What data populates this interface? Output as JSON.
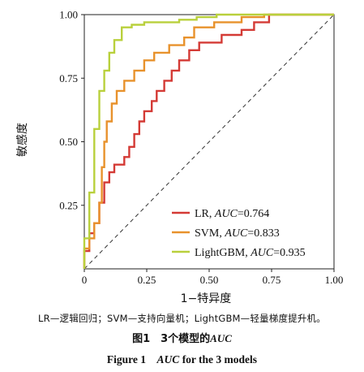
{
  "chart_data": {
    "type": "line",
    "xlabel": "1−特异度",
    "ylabel": "敏感度",
    "xlim": [
      0,
      1
    ],
    "ylim": [
      0,
      1
    ],
    "x_ticks": [
      "0",
      "0.25",
      "0.50",
      "0.75",
      "1.00"
    ],
    "y_ticks": [
      "0.25",
      "0.50",
      "0.75",
      "1.00"
    ],
    "grid": false,
    "legend_position": "bottom-right",
    "diagonal_reference": true,
    "series": [
      {
        "name": "LR",
        "auc_text": "AUC=0.764",
        "color": "#d43a35",
        "points": [
          [
            0,
            0
          ],
          [
            0,
            0.07
          ],
          [
            0.02,
            0.07
          ],
          [
            0.02,
            0.14
          ],
          [
            0.04,
            0.14
          ],
          [
            0.04,
            0.18
          ],
          [
            0.06,
            0.18
          ],
          [
            0.06,
            0.26
          ],
          [
            0.08,
            0.26
          ],
          [
            0.08,
            0.34
          ],
          [
            0.1,
            0.34
          ],
          [
            0.1,
            0.38
          ],
          [
            0.12,
            0.38
          ],
          [
            0.12,
            0.41
          ],
          [
            0.16,
            0.41
          ],
          [
            0.16,
            0.44
          ],
          [
            0.18,
            0.44
          ],
          [
            0.18,
            0.48
          ],
          [
            0.2,
            0.48
          ],
          [
            0.2,
            0.53
          ],
          [
            0.22,
            0.53
          ],
          [
            0.22,
            0.58
          ],
          [
            0.24,
            0.58
          ],
          [
            0.24,
            0.62
          ],
          [
            0.27,
            0.62
          ],
          [
            0.27,
            0.66
          ],
          [
            0.29,
            0.66
          ],
          [
            0.29,
            0.7
          ],
          [
            0.32,
            0.7
          ],
          [
            0.32,
            0.74
          ],
          [
            0.35,
            0.74
          ],
          [
            0.35,
            0.78
          ],
          [
            0.38,
            0.78
          ],
          [
            0.38,
            0.82
          ],
          [
            0.42,
            0.82
          ],
          [
            0.42,
            0.86
          ],
          [
            0.46,
            0.86
          ],
          [
            0.46,
            0.89
          ],
          [
            0.55,
            0.89
          ],
          [
            0.55,
            0.92
          ],
          [
            0.63,
            0.92
          ],
          [
            0.63,
            0.94
          ],
          [
            0.68,
            0.94
          ],
          [
            0.68,
            0.97
          ],
          [
            0.74,
            0.97
          ],
          [
            0.74,
            1.0
          ],
          [
            1.0,
            1.0
          ]
        ]
      },
      {
        "name": "SVM",
        "auc_text": "AUC=0.833",
        "color": "#e8922c",
        "points": [
          [
            0,
            0
          ],
          [
            0,
            0.08
          ],
          [
            0.02,
            0.08
          ],
          [
            0.02,
            0.12
          ],
          [
            0.04,
            0.12
          ],
          [
            0.04,
            0.18
          ],
          [
            0.06,
            0.18
          ],
          [
            0.06,
            0.26
          ],
          [
            0.07,
            0.26
          ],
          [
            0.07,
            0.4
          ],
          [
            0.08,
            0.4
          ],
          [
            0.08,
            0.5
          ],
          [
            0.09,
            0.5
          ],
          [
            0.09,
            0.58
          ],
          [
            0.11,
            0.58
          ],
          [
            0.11,
            0.65
          ],
          [
            0.13,
            0.65
          ],
          [
            0.13,
            0.7
          ],
          [
            0.16,
            0.7
          ],
          [
            0.16,
            0.74
          ],
          [
            0.2,
            0.74
          ],
          [
            0.2,
            0.78
          ],
          [
            0.24,
            0.78
          ],
          [
            0.24,
            0.82
          ],
          [
            0.28,
            0.82
          ],
          [
            0.28,
            0.85
          ],
          [
            0.34,
            0.85
          ],
          [
            0.34,
            0.88
          ],
          [
            0.4,
            0.88
          ],
          [
            0.4,
            0.91
          ],
          [
            0.44,
            0.91
          ],
          [
            0.44,
            0.95
          ],
          [
            0.52,
            0.95
          ],
          [
            0.52,
            0.97
          ],
          [
            0.63,
            0.97
          ],
          [
            0.63,
            0.99
          ],
          [
            0.72,
            0.99
          ],
          [
            0.72,
            1.0
          ],
          [
            1.0,
            1.0
          ]
        ]
      },
      {
        "name": "LightGBM",
        "auc_text": "AUC=0.935",
        "color": "#b9d03c",
        "points": [
          [
            0,
            0
          ],
          [
            0,
            0.12
          ],
          [
            0.02,
            0.12
          ],
          [
            0.02,
            0.3
          ],
          [
            0.04,
            0.3
          ],
          [
            0.04,
            0.55
          ],
          [
            0.06,
            0.55
          ],
          [
            0.06,
            0.7
          ],
          [
            0.08,
            0.7
          ],
          [
            0.08,
            0.78
          ],
          [
            0.1,
            0.78
          ],
          [
            0.1,
            0.85
          ],
          [
            0.12,
            0.85
          ],
          [
            0.12,
            0.9
          ],
          [
            0.15,
            0.9
          ],
          [
            0.15,
            0.95
          ],
          [
            0.19,
            0.95
          ],
          [
            0.19,
            0.96
          ],
          [
            0.24,
            0.96
          ],
          [
            0.24,
            0.97
          ],
          [
            0.38,
            0.97
          ],
          [
            0.38,
            0.98
          ],
          [
            0.45,
            0.98
          ],
          [
            0.45,
            0.99
          ],
          [
            0.53,
            0.99
          ],
          [
            0.53,
            1.0
          ],
          [
            1.0,
            1.0
          ]
        ]
      }
    ]
  },
  "note": "LR—逻辑回归；SVM—支持向量机；LightGBM—轻量梯度提升机。",
  "caption_cn": {
    "prefix": "图1　3个模型的",
    "italic": "AUC"
  },
  "caption_en": {
    "prefix": "Figure 1　",
    "italic": "AUC",
    "suffix": " for the 3 models"
  }
}
